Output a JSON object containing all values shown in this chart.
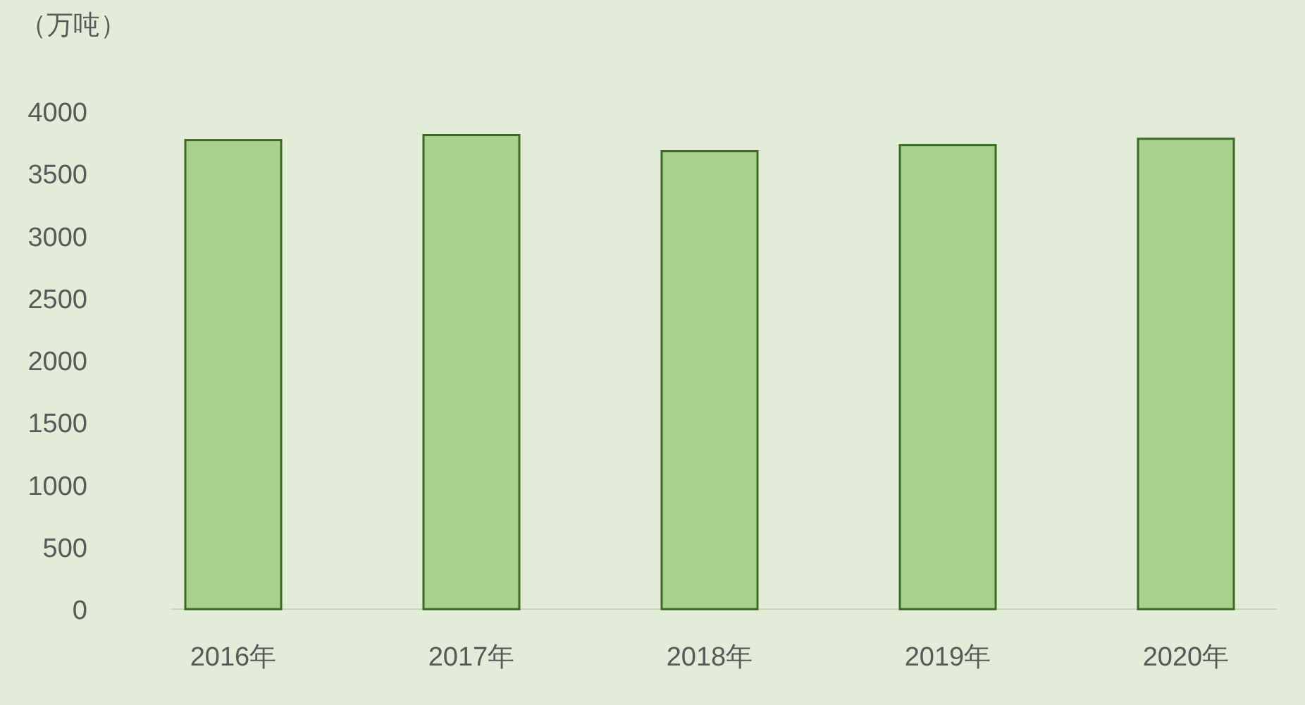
{
  "chart_data": {
    "type": "bar",
    "ylabel": "（万吨）",
    "categories": [
      "2016年",
      "2017年",
      "2018年",
      "2019年",
      "2020年"
    ],
    "values": [
      3770,
      3810,
      3680,
      3730,
      3780
    ],
    "color": "#a9d18e",
    "ylim": [
      0,
      4000
    ],
    "yticks": [
      0,
      500,
      1000,
      1500,
      2000,
      2500,
      3000,
      3500,
      4000
    ]
  }
}
